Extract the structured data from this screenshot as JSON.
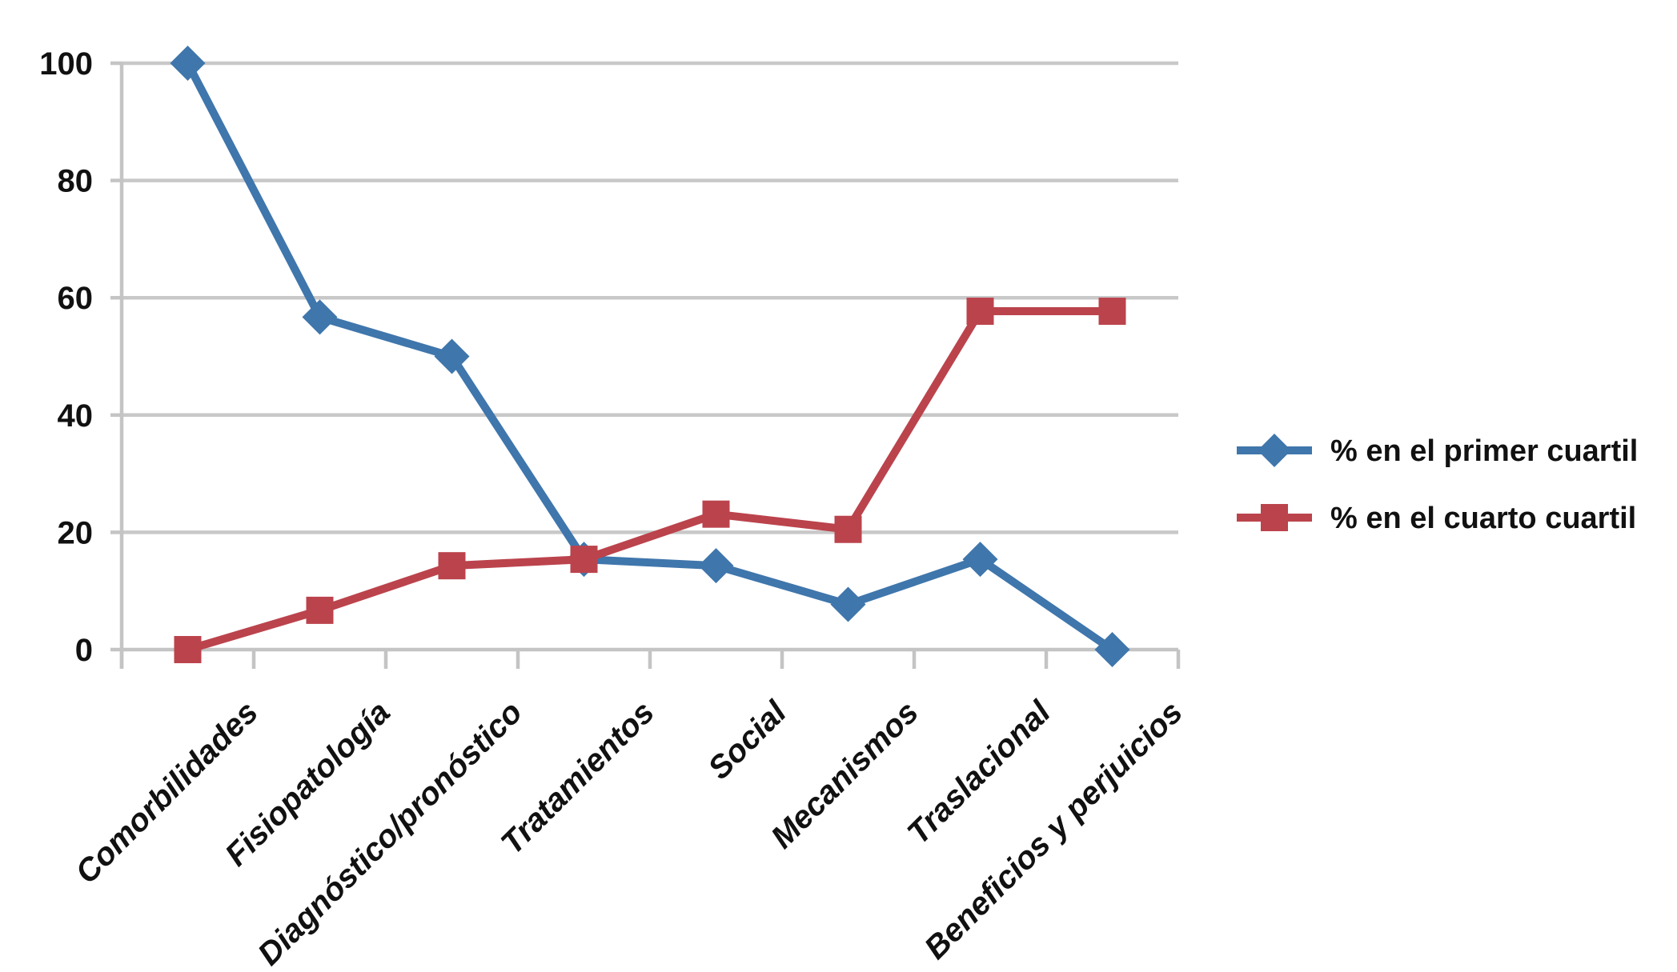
{
  "chart_data": {
    "type": "line",
    "categories": [
      "Comorbilidades",
      "Fisiopatología",
      "Diagnóstico/pronóstico",
      "Tratamientos",
      "Social",
      "Mecanismos",
      "Traslacional",
      "Beneficios y perjuicios"
    ],
    "series": [
      {
        "name": "% en el primer cuartil",
        "marker": "diamond",
        "color": "#3F76AC",
        "values": [
          100,
          56.7,
          50,
          15.4,
          14.3,
          7.7,
          15.4,
          0
        ]
      },
      {
        "name": "% en el cuarto cuartil",
        "marker": "square",
        "color": "#BB434C",
        "values": [
          0,
          6.7,
          14.3,
          15.4,
          23.1,
          20.5,
          57.7,
          57.7
        ]
      }
    ],
    "title": "",
    "xlabel": "",
    "ylabel": "",
    "ylim": [
      0,
      100
    ],
    "yticks": [
      0,
      20,
      40,
      60,
      80,
      100
    ],
    "grid": true,
    "legend_position": "right"
  },
  "colors": {
    "series_primer_cuartil": "#3F76AC",
    "series_cuarto_cuartil": "#BB434C",
    "gridline": "#C8C8C8",
    "axis": "#C4C4C4",
    "text": "#111111",
    "background": "#FFFFFF"
  }
}
